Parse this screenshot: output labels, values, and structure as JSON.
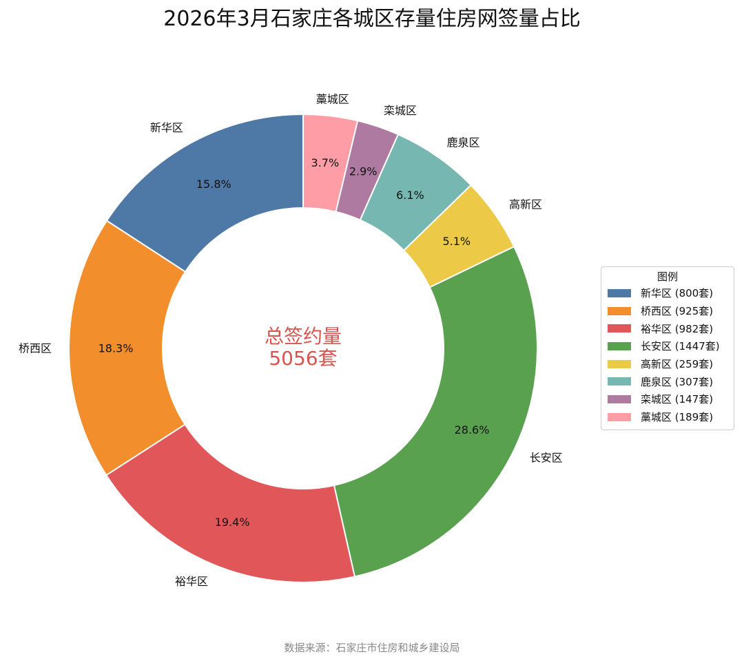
{
  "chart_data": {
    "type": "pie",
    "variant": "donut",
    "title": "2026年3月石家庄各城区存量住房网签量占比",
    "categories": [
      "新华区",
      "桥西区",
      "裕华区",
      "长安区",
      "高新区",
      "鹿泉区",
      "栾城区",
      "藁城区"
    ],
    "values": [
      800,
      925,
      982,
      1447,
      259,
      307,
      147,
      189
    ],
    "percent_labels": [
      "15.8%",
      "18.3%",
      "19.4%",
      "28.6%",
      "5.1%",
      "6.1%",
      "2.9%",
      "3.7%"
    ],
    "colors": [
      "#4e79a7",
      "#f28e2b",
      "#e15759",
      "#59a14f",
      "#edc948",
      "#76b7b2",
      "#af7aa1",
      "#ff9da7"
    ],
    "start_angle_deg": 90,
    "direction": "counterclockwise",
    "center_label": [
      "总签约量",
      "5056套"
    ],
    "center_label_color": "#d9534f",
    "legend": {
      "title": "图例",
      "placement": "right",
      "entries": [
        "新华区 (800套)",
        "桥西区 (925套)",
        "裕华区 (982套)",
        "长安区 (1447套)",
        "高新区 (259套)",
        "鹿泉区 (307套)",
        "栾城区 (147套)",
        "藁城区 (189套)"
      ]
    },
    "source_note": "数据来源：石家庄市住房和城乡建设局"
  }
}
